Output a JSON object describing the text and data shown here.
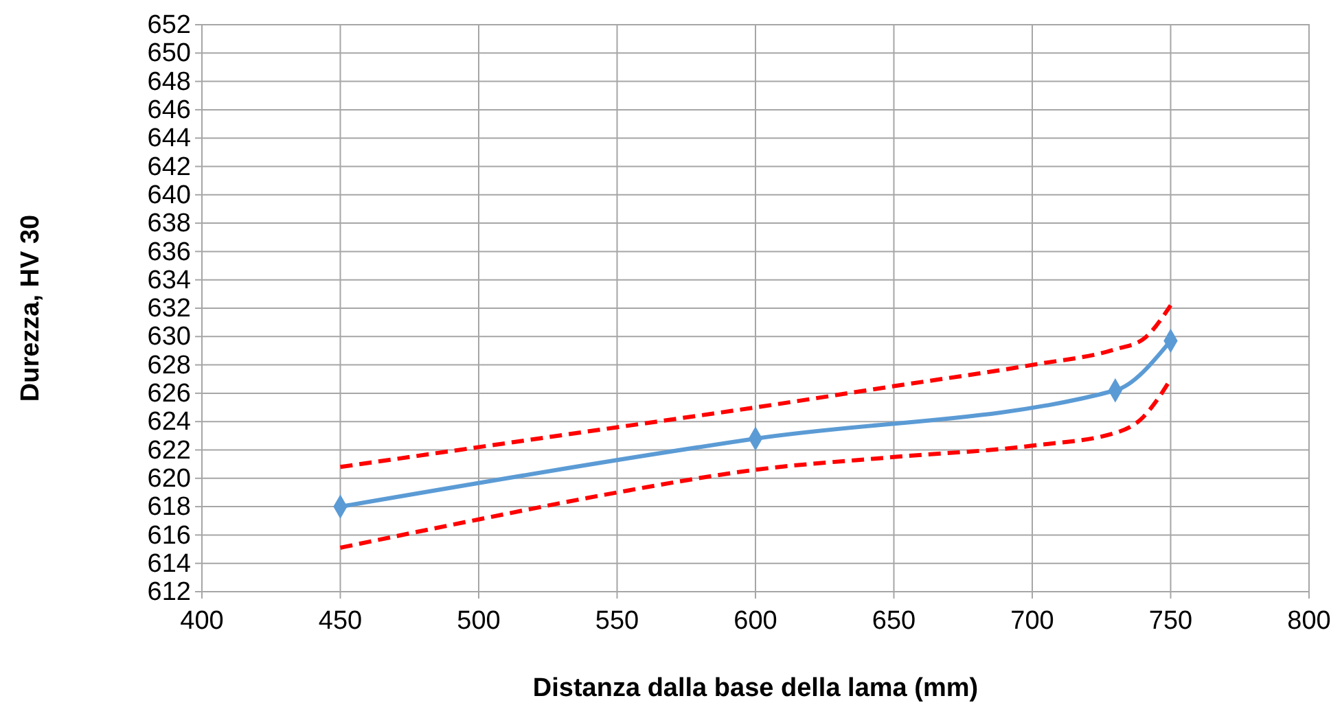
{
  "chart_data": {
    "type": "line",
    "xlabel": "Distanza  dalla base della lama (mm)",
    "ylabel": "Durezza, HV 30",
    "xlim": [
      400,
      800
    ],
    "xticks": [
      400,
      450,
      500,
      550,
      600,
      650,
      700,
      750,
      800
    ],
    "ylim": [
      612,
      652
    ],
    "yticks": [
      612,
      614,
      616,
      618,
      620,
      622,
      624,
      626,
      628,
      630,
      632,
      634,
      636,
      638,
      640,
      642,
      644,
      646,
      648,
      650,
      652
    ],
    "grid": true,
    "series": [
      {
        "color": "#ff0000",
        "line_style": "dashed",
        "marker": "none",
        "x": [
          450,
          500,
          550,
          600,
          650,
          700,
          730,
          740,
          750
        ],
        "values": [
          620.8,
          622.2,
          623.6,
          625.0,
          626.5,
          628.0,
          629.1,
          629.8,
          632.2
        ]
      },
      {
        "color": "#ff0000",
        "line_style": "dashed",
        "marker": "none",
        "x": [
          450,
          500,
          550,
          600,
          650,
          700,
          730,
          740,
          745,
          750
        ],
        "values": [
          615.1,
          617.1,
          619.0,
          620.6,
          621.5,
          622.3,
          623.2,
          624.3,
          625.5,
          627.0
        ]
      },
      {
        "color": "#5b9bd5",
        "line_style": "solid",
        "marker": "diamond",
        "x": [
          450,
          600,
          730,
          750
        ],
        "values": [
          618.0,
          622.8,
          626.2,
          629.7
        ]
      }
    ]
  }
}
